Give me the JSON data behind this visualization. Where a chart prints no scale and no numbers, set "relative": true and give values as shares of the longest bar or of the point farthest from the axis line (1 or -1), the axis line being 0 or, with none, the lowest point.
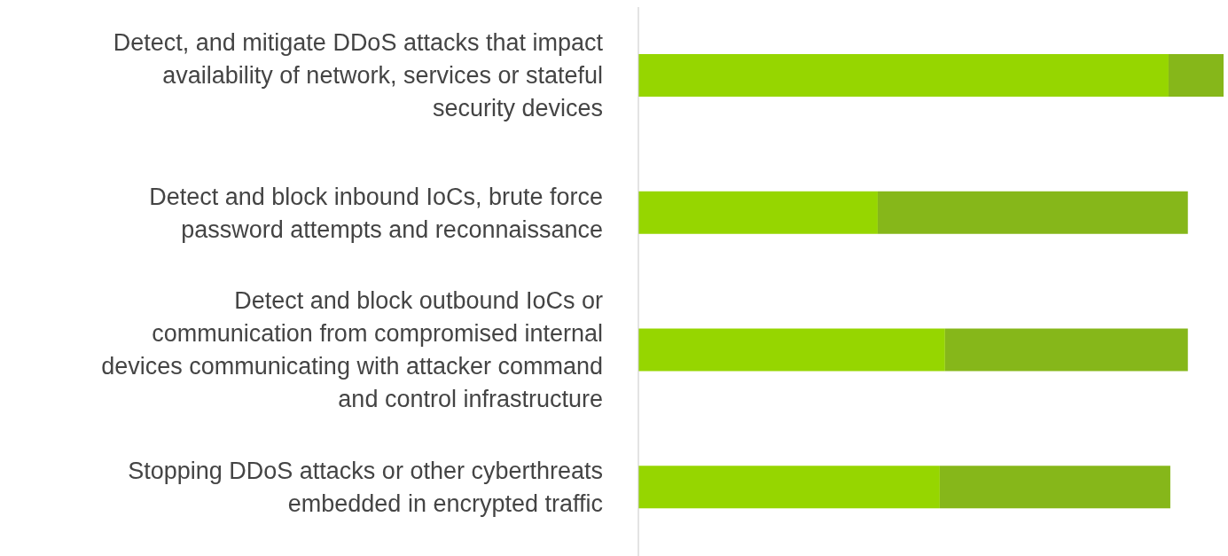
{
  "chart_data": {
    "type": "bar",
    "orientation": "horizontal",
    "stacked": true,
    "relative": true,
    "categories": [
      "Detect, and mitigate DDoS attacks that impact availability of network, services or stateful security devices",
      "Detect and block inbound IoCs, brute force password attempts and reconnaissance",
      "Detect and block outbound IoCs or communication from compromised internal devices communicating with attacker command and control infrastructure",
      "Stopping DDoS attacks or other cyberthreats embedded in encrypted traffic"
    ],
    "series": [
      {
        "color": "#96d600",
        "values": [
          0.906,
          0.409,
          0.524,
          0.515
        ]
      },
      {
        "color": "#86b71a",
        "values": [
          0.094,
          0.53,
          0.415,
          0.394
        ]
      }
    ]
  }
}
